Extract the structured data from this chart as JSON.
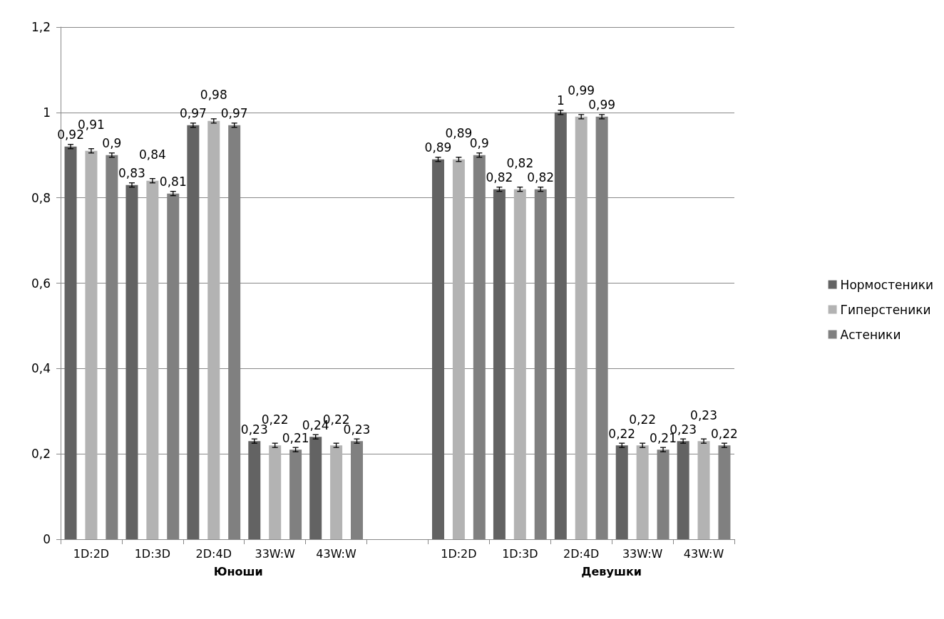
{
  "chart_data": {
    "type": "bar",
    "categories": [
      "1D:2D",
      "1D:3D",
      "2D:4D",
      "33W:W",
      "43W:W",
      null,
      "1D:2D",
      "1D:3D",
      "2D:4D",
      "33W:W",
      "43W:W"
    ],
    "series": [
      {
        "name": "Нормостеники",
        "color": "#636363",
        "values": [
          0.92,
          0.83,
          0.97,
          0.23,
          0.24,
          null,
          0.89,
          0.82,
          1,
          0.22,
          0.23
        ],
        "value_labels": [
          "0,92",
          "0,83",
          "0,97",
          "0,23",
          "0,24",
          null,
          "0,89",
          "0,82",
          "1",
          "0,22",
          "0,23"
        ],
        "errors": [
          0.005,
          0.005,
          0.005,
          0.005,
          0.005,
          null,
          0.005,
          0.005,
          0.005,
          0.005,
          0.005
        ]
      },
      {
        "name": "Гиперстеники",
        "color": "#b3b3b3",
        "values": [
          0.91,
          0.84,
          0.98,
          0.22,
          0.22,
          null,
          0.89,
          0.82,
          0.99,
          0.22,
          0.23
        ],
        "value_labels": [
          "0,91",
          "0,84",
          "0,98",
          "0,22",
          "0,22",
          null,
          "0,89",
          "0,82",
          "0,99",
          "0,22",
          "0,23"
        ],
        "errors": [
          0.005,
          0.005,
          0.005,
          0.005,
          0.005,
          null,
          0.005,
          0.005,
          0.005,
          0.005,
          0.005
        ]
      },
      {
        "name": "Астеники",
        "color": "#808080",
        "values": [
          0.9,
          0.81,
          0.97,
          0.21,
          0.23,
          null,
          0.9,
          0.82,
          0.99,
          0.21,
          0.22
        ],
        "value_labels": [
          "0,9",
          "0,81",
          "0,97",
          "0,21",
          "0,23",
          null,
          "0,9",
          "0,82",
          "0,99",
          "0,21",
          "0,22"
        ],
        "errors": [
          0.005,
          0.005,
          0.005,
          0.005,
          0.005,
          null,
          0.005,
          0.005,
          0.005,
          0.005,
          0.005
        ]
      }
    ],
    "ylim": [
      0,
      1.2
    ],
    "yticks": [
      0,
      {
        "value": 0.2,
        "label": "0,2"
      },
      {
        "value": 0.4,
        "label": "0,4"
      },
      {
        "value": 0.6,
        "label": "0,6"
      },
      {
        "value": 0.8,
        "label": "0,8"
      },
      1,
      {
        "value": 1.2,
        "label": "1,2"
      }
    ],
    "grid": "y",
    "legend": "right",
    "annotations": [
      "Юноши",
      "Девушки"
    ]
  }
}
